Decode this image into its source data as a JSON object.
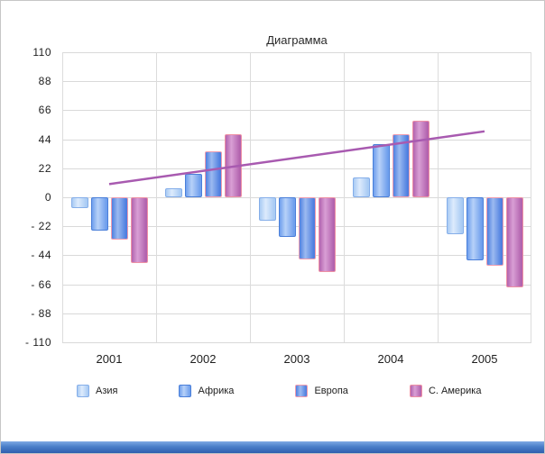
{
  "chart_data": {
    "type": "bar",
    "title": "Диаграмма",
    "categories": [
      "2001",
      "2002",
      "2003",
      "2004",
      "2005"
    ],
    "series": [
      {
        "name": "Азия",
        "color": "#a9cbf4",
        "highlight": "#ddebfc",
        "border": "#85aee9",
        "values": [
          -8,
          7,
          -18,
          15,
          -28
        ]
      },
      {
        "name": "Африка",
        "color": "#6f9fed",
        "highlight": "#b7d1f8",
        "border": "#4a7fd9",
        "values": [
          -25,
          18,
          -30,
          40,
          -48
        ]
      },
      {
        "name": "Европа",
        "color": "#4e7fe0",
        "highlight": "#9cbaf0",
        "border": "#f09cae",
        "values": [
          -32,
          35,
          -47,
          48,
          -52
        ]
      },
      {
        "name": "С. Америка",
        "color": "#b263ae",
        "highlight": "#d99fd5",
        "border": "#ee90a4",
        "values": [
          -50,
          48,
          -57,
          58,
          -68
        ]
      }
    ],
    "trendline": {
      "color": "#a85ab0",
      "start_value": 10,
      "end_value": 50
    },
    "ylim": [
      -110,
      110
    ],
    "ytick_step": 22,
    "ytick_labels": [
      "110",
      "88",
      "66",
      "44",
      "22",
      "0",
      "- 22",
      "- 44",
      "- 66",
      "- 88",
      "- 110"
    ],
    "grid": true,
    "legend_position": "bottom"
  }
}
